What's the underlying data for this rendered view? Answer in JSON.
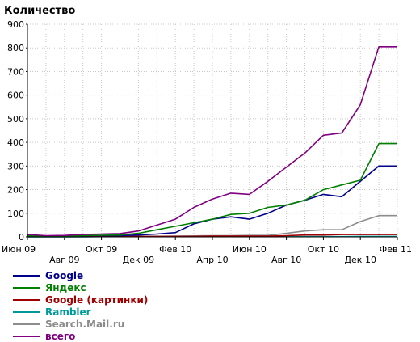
{
  "chart_data": {
    "type": "line",
    "title": "",
    "ylabel": "Количество",
    "xlabel": "",
    "ylim": [
      0,
      900
    ],
    "yticks": [
      0,
      100,
      200,
      300,
      400,
      500,
      600,
      700,
      800,
      900
    ],
    "grid": true,
    "legend_position": "bottom-left",
    "x": [
      "Июн 09",
      "Июл 09",
      "Авг 09",
      "Сен 09",
      "Окт 09",
      "Ноя 09",
      "Дек 09",
      "Янв 10",
      "Фев 10",
      "Мар 10",
      "Апр 10",
      "Май 10",
      "Июн 10",
      "Июл 10",
      "Авг 10",
      "Сен 10",
      "Окт 10",
      "Ноя 10",
      "Дек 10",
      "Янв 11",
      "Фев 11"
    ],
    "xtick_labels": [
      {
        "index": 0,
        "label": "Июн 09",
        "row": 0
      },
      {
        "index": 2,
        "label": "Авг 09",
        "row": 1
      },
      {
        "index": 4,
        "label": "Окт 09",
        "row": 0
      },
      {
        "index": 6,
        "label": "Дек 09",
        "row": 1
      },
      {
        "index": 8,
        "label": "Фев 10",
        "row": 0
      },
      {
        "index": 10,
        "label": "Апр 10",
        "row": 1
      },
      {
        "index": 12,
        "label": "Июн 10",
        "row": 0
      },
      {
        "index": 14,
        "label": "Авг 10",
        "row": 1
      },
      {
        "index": 16,
        "label": "Окт 10",
        "row": 0
      },
      {
        "index": 18,
        "label": "Дек 10",
        "row": 1
      },
      {
        "index": 20,
        "label": "Фев 11",
        "row": 0
      }
    ],
    "series": [
      {
        "name": "Google",
        "color": "#00008b",
        "values": [
          5,
          2,
          3,
          5,
          5,
          5,
          8,
          12,
          18,
          55,
          75,
          85,
          75,
          100,
          135,
          155,
          180,
          170,
          235,
          300,
          300
        ]
      },
      {
        "name": "Яндекс",
        "color": "#008000",
        "values": [
          5,
          2,
          3,
          5,
          7,
          8,
          15,
          30,
          45,
          60,
          75,
          95,
          100,
          125,
          135,
          155,
          200,
          220,
          240,
          395,
          395
        ]
      },
      {
        "name": "Google (картинки)",
        "color": "#a00000",
        "values": [
          1,
          1,
          1,
          1,
          2,
          2,
          2,
          2,
          2,
          2,
          3,
          3,
          3,
          3,
          5,
          8,
          8,
          10,
          10,
          10,
          10
        ]
      },
      {
        "name": "Rambler",
        "color": "#009999",
        "values": [
          0,
          0,
          0,
          0,
          1,
          1,
          1,
          1,
          1,
          1,
          1,
          1,
          1,
          1,
          1,
          1,
          1,
          1,
          2,
          2,
          2
        ]
      },
      {
        "name": "Search.Mail.ru",
        "color": "#8c8c8c",
        "values": [
          0,
          0,
          0,
          1,
          1,
          1,
          2,
          2,
          3,
          4,
          5,
          5,
          6,
          6,
          15,
          25,
          30,
          30,
          65,
          90,
          90
        ]
      },
      {
        "name": "всего",
        "color": "#800080",
        "values": [
          10,
          5,
          6,
          10,
          12,
          14,
          25,
          50,
          75,
          125,
          160,
          185,
          180,
          235,
          295,
          355,
          430,
          440,
          560,
          805,
          805
        ]
      }
    ]
  }
}
